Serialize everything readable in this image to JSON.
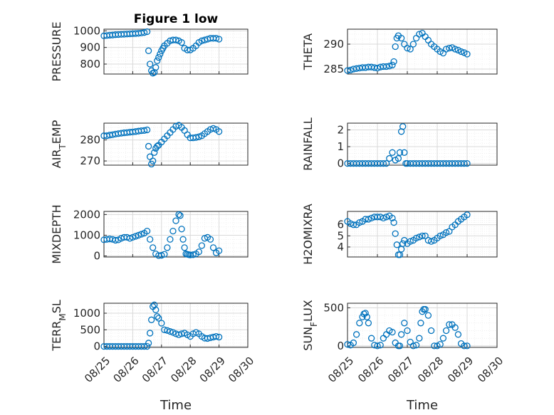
{
  "figure_title": "Figure 1 low",
  "marker_color": "#0072bd",
  "chart_data": [
    {
      "type": "scatter",
      "title": "Figure 1 low",
      "ylabel_main": "PRESSURE",
      "ylabel_sub": "",
      "ylim": [
        740,
        1010
      ],
      "yticks": [
        800,
        900,
        1000
      ],
      "x": [
        0,
        0.1,
        0.2,
        0.3,
        0.4,
        0.5,
        0.6,
        0.7,
        0.8,
        0.9,
        1.0,
        1.1,
        1.2,
        1.3,
        1.4,
        1.5,
        1.55,
        1.6,
        1.65,
        1.7,
        1.75,
        1.8,
        1.85,
        1.9,
        1.95,
        2.0,
        2.05,
        2.1,
        2.2,
        2.3,
        2.4,
        2.5,
        2.6,
        2.7,
        2.8,
        2.9,
        3.0,
        3.1,
        3.2,
        3.3,
        3.4,
        3.5,
        3.6,
        3.7,
        3.8,
        3.9,
        4.0
      ],
      "y": [
        970,
        972,
        974,
        975,
        977,
        978,
        979,
        980,
        981,
        982,
        983,
        984,
        985,
        987,
        990,
        995,
        880,
        800,
        760,
        745,
        750,
        780,
        820,
        840,
        860,
        880,
        895,
        910,
        925,
        940,
        945,
        945,
        940,
        930,
        895,
        885,
        885,
        895,
        910,
        930,
        940,
        945,
        950,
        955,
        955,
        955,
        950
      ]
    },
    {
      "type": "scatter",
      "title": "",
      "ylabel_main": "THETA",
      "ylabel_sub": "",
      "ylim": [
        284,
        293
      ],
      "yticks": [
        285,
        290
      ],
      "x": [
        0,
        0.1,
        0.2,
        0.3,
        0.4,
        0.5,
        0.6,
        0.7,
        0.8,
        0.9,
        1.0,
        1.1,
        1.2,
        1.3,
        1.4,
        1.5,
        1.55,
        1.6,
        1.65,
        1.7,
        1.8,
        1.9,
        2.0,
        2.1,
        2.2,
        2.3,
        2.4,
        2.5,
        2.6,
        2.7,
        2.8,
        2.9,
        3.0,
        3.1,
        3.2,
        3.3,
        3.4,
        3.5,
        3.6,
        3.7,
        3.8,
        3.9,
        4.0
      ],
      "y": [
        284.7,
        284.8,
        285,
        285.1,
        285.2,
        285.3,
        285.3,
        285.4,
        285.4,
        285.3,
        285.2,
        285.4,
        285.5,
        285.5,
        285.6,
        285.8,
        286.5,
        289.5,
        291.2,
        291.7,
        291.2,
        290,
        289.2,
        289,
        290,
        291.2,
        292,
        292.2,
        291.5,
        290.8,
        290,
        289.5,
        289,
        288.5,
        288.2,
        289,
        289.2,
        289.3,
        289,
        288.8,
        288.5,
        288.3,
        288
      ]
    },
    {
      "type": "scatter",
      "title": "",
      "ylabel_main": "AIR",
      "ylabel_sub": "T",
      "ylabel_tail": "EMP",
      "ylim": [
        268,
        288
      ],
      "yticks": [
        270,
        280
      ],
      "x": [
        0,
        0.1,
        0.2,
        0.3,
        0.4,
        0.5,
        0.6,
        0.7,
        0.8,
        0.9,
        1.0,
        1.1,
        1.2,
        1.3,
        1.4,
        1.5,
        1.55,
        1.6,
        1.65,
        1.7,
        1.75,
        1.8,
        1.85,
        1.9,
        2.0,
        2.1,
        2.2,
        2.3,
        2.4,
        2.5,
        2.6,
        2.7,
        2.8,
        2.9,
        3.0,
        3.1,
        3.2,
        3.3,
        3.4,
        3.5,
        3.6,
        3.7,
        3.8,
        3.9,
        4.0
      ],
      "y": [
        282,
        282,
        282.3,
        282.5,
        282.8,
        283,
        283.2,
        283.4,
        283.5,
        283.7,
        283.8,
        284,
        284.2,
        284.4,
        284.5,
        284.8,
        277,
        272,
        268.5,
        270,
        274,
        276,
        277,
        277.5,
        279,
        280.5,
        282,
        283.5,
        285,
        286.5,
        287,
        286,
        284.5,
        282.5,
        281,
        281,
        281.2,
        281.5,
        282,
        283,
        284,
        285,
        285.5,
        285,
        284
      ]
    },
    {
      "type": "scatter",
      "title": "",
      "ylabel_main": "RAINFALL",
      "ylabel_sub": "",
      "ylim": [
        -0.1,
        2.4
      ],
      "yticks": [
        0,
        1,
        2
      ],
      "x": [
        0,
        0.1,
        0.2,
        0.3,
        0.4,
        0.5,
        0.6,
        0.7,
        0.8,
        0.9,
        1.0,
        1.1,
        1.2,
        1.3,
        1.4,
        1.5,
        1.6,
        1.7,
        1.75,
        1.8,
        1.85,
        1.9,
        1.95,
        2.0,
        2.1,
        2.2,
        2.3,
        2.4,
        2.5,
        2.6,
        2.7,
        2.8,
        2.9,
        3.0,
        3.1,
        3.2,
        3.3,
        3.4,
        3.5,
        3.6,
        3.7,
        3.8,
        3.9,
        4.0
      ],
      "y": [
        0,
        0,
        0,
        0,
        0,
        0,
        0,
        0,
        0,
        0,
        0,
        0,
        0,
        0,
        0.3,
        0.65,
        0.2,
        0.3,
        0.65,
        1.9,
        2.2,
        0.65,
        0,
        0,
        0,
        0,
        0,
        0,
        0,
        0,
        0,
        0,
        0,
        0,
        0,
        0,
        0,
        0,
        0,
        0,
        0,
        0,
        0,
        0
      ]
    },
    {
      "type": "scatter",
      "title": "",
      "ylabel_main": "MIXDEPTH",
      "ylabel_sub": "",
      "ylim": [
        -50,
        2150
      ],
      "yticks": [
        0,
        1000,
        2000
      ],
      "x": [
        0,
        0.1,
        0.2,
        0.3,
        0.4,
        0.5,
        0.6,
        0.7,
        0.8,
        0.9,
        1.0,
        1.1,
        1.2,
        1.3,
        1.4,
        1.5,
        1.6,
        1.7,
        1.8,
        1.9,
        2.0,
        2.1,
        2.2,
        2.3,
        2.4,
        2.5,
        2.6,
        2.65,
        2.7,
        2.75,
        2.8,
        2.85,
        2.9,
        2.95,
        3.0,
        3.1,
        3.2,
        3.3,
        3.4,
        3.5,
        3.6,
        3.7,
        3.8,
        3.9,
        4.0
      ],
      "y": [
        780,
        800,
        820,
        800,
        760,
        780,
        850,
        900,
        900,
        850,
        900,
        950,
        1000,
        1050,
        1100,
        1200,
        800,
        400,
        100,
        20,
        30,
        80,
        400,
        800,
        1200,
        1700,
        2000,
        1950,
        1300,
        800,
        400,
        100,
        80,
        60,
        50,
        60,
        100,
        200,
        500,
        850,
        900,
        800,
        400,
        150,
        250
      ]
    },
    {
      "type": "scatter",
      "title": "",
      "ylabel_main": "H2OMIXRA",
      "ylabel_sub": "",
      "ylim": [
        3.1,
        7.2
      ],
      "yticks": [
        4,
        5,
        6
      ],
      "x": [
        0,
        0.1,
        0.2,
        0.3,
        0.4,
        0.5,
        0.6,
        0.7,
        0.8,
        0.9,
        1.0,
        1.1,
        1.2,
        1.3,
        1.4,
        1.5,
        1.55,
        1.6,
        1.65,
        1.7,
        1.75,
        1.8,
        1.85,
        1.9,
        2.0,
        2.1,
        2.2,
        2.3,
        2.4,
        2.5,
        2.6,
        2.7,
        2.8,
        2.9,
        3.0,
        3.1,
        3.2,
        3.3,
        3.4,
        3.5,
        3.6,
        3.7,
        3.8,
        3.9,
        4.0
      ],
      "y": [
        6.3,
        6.1,
        6.0,
        6.0,
        6.2,
        6.3,
        6.5,
        6.5,
        6.6,
        6.7,
        6.7,
        6.7,
        6.6,
        6.7,
        6.8,
        6.6,
        6.2,
        5.2,
        4.2,
        3.3,
        3.3,
        3.8,
        4.3,
        4.6,
        4.3,
        4.5,
        4.6,
        4.8,
        4.9,
        5.0,
        5.0,
        4.6,
        4.5,
        4.6,
        4.8,
        5.0,
        5.1,
        5.3,
        5.4,
        5.8,
        6.0,
        6.3,
        6.5,
        6.7,
        6.9
      ]
    },
    {
      "type": "scatter",
      "title": "",
      "ylabel_main": "TERR",
      "ylabel_sub": "M",
      "ylabel_tail": "SL",
      "ylim": [
        -30,
        1300
      ],
      "yticks": [
        0,
        500,
        1000
      ],
      "x": [
        0,
        0.1,
        0.2,
        0.3,
        0.4,
        0.5,
        0.6,
        0.7,
        0.8,
        0.9,
        1.0,
        1.1,
        1.2,
        1.3,
        1.4,
        1.5,
        1.55,
        1.6,
        1.65,
        1.7,
        1.75,
        1.8,
        1.85,
        1.9,
        2.0,
        2.1,
        2.2,
        2.3,
        2.4,
        2.5,
        2.6,
        2.7,
        2.8,
        2.9,
        3.0,
        3.1,
        3.2,
        3.3,
        3.4,
        3.5,
        3.6,
        3.7,
        3.8,
        3.9,
        4.0
      ],
      "y": [
        0,
        0,
        0,
        0,
        0,
        0,
        0,
        0,
        0,
        0,
        0,
        0,
        0,
        0,
        0,
        0,
        100,
        400,
        800,
        1200,
        1250,
        1100,
        900,
        850,
        700,
        500,
        480,
        450,
        420,
        380,
        350,
        380,
        400,
        350,
        300,
        380,
        420,
        380,
        300,
        250,
        240,
        260,
        280,
        300,
        280
      ]
    },
    {
      "type": "scatter",
      "title": "",
      "ylabel_main": "SUN",
      "ylabel_sub": "F",
      "ylabel_tail": "LUX",
      "ylim": [
        -20,
        560
      ],
      "yticks": [
        0,
        500
      ],
      "x": [
        0,
        0.1,
        0.2,
        0.3,
        0.4,
        0.5,
        0.55,
        0.6,
        0.65,
        0.7,
        0.8,
        0.9,
        1.0,
        1.1,
        1.2,
        1.3,
        1.4,
        1.5,
        1.6,
        1.7,
        1.75,
        1.8,
        1.9,
        2.0,
        2.1,
        2.2,
        2.3,
        2.4,
        2.45,
        2.5,
        2.55,
        2.6,
        2.7,
        2.8,
        2.9,
        3.0,
        3.1,
        3.2,
        3.3,
        3.4,
        3.5,
        3.6,
        3.7,
        3.8,
        3.9,
        4.0
      ],
      "y": [
        20,
        10,
        40,
        150,
        300,
        380,
        420,
        430,
        380,
        300,
        100,
        10,
        0,
        10,
        100,
        150,
        200,
        180,
        40,
        0,
        0,
        150,
        300,
        200,
        50,
        0,
        10,
        100,
        300,
        450,
        480,
        480,
        400,
        200,
        0,
        0,
        20,
        100,
        200,
        280,
        280,
        240,
        150,
        30,
        0,
        0
      ]
    }
  ],
  "x_axis": {
    "tick_labels": [
      "08/25",
      "08/26",
      "08/27",
      "08/28",
      "08/29",
      "08/30"
    ],
    "xlim": [
      "08/25",
      "08/30"
    ],
    "xlabel": "Time"
  }
}
